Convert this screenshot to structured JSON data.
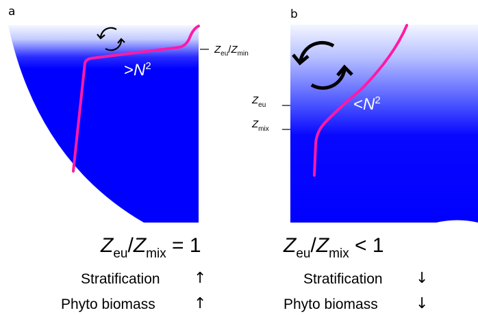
{
  "panel_a": {
    "label": "a",
    "n2_prefix": ">",
    "n2_var": "N",
    "n2_exp": "2",
    "depth_ratio": {
      "top": "Z",
      "top_sub": "eu",
      "sep": "/",
      "bottom": "Z",
      "bottom_sub": "min"
    },
    "ratio_eq": {
      "num": "Z",
      "num_sub": "eu",
      "sep": "/",
      "den": "Z",
      "den_sub": "mix",
      "rel": " = 1"
    },
    "trends": [
      {
        "label": "Stratification",
        "direction": "up",
        "glyph": "↑"
      },
      {
        "label": "Phyto biomass",
        "direction": "up",
        "glyph": "↑"
      }
    ]
  },
  "panel_b": {
    "label": "b",
    "n2_prefix": "<",
    "n2_var": "N",
    "n2_exp": "2",
    "depth_eu": {
      "var": "Z",
      "sub": "eu"
    },
    "depth_mix": {
      "var": "Z",
      "sub": "mix"
    },
    "ratio_eq": {
      "num": "Z",
      "num_sub": "eu",
      "sep": "/",
      "den": "Z",
      "den_sub": "mix",
      "rel": " < 1"
    },
    "trends": [
      {
        "label": "Stratification",
        "direction": "down",
        "glyph": "↓"
      },
      {
        "label": "Phyto biomass",
        "direction": "down",
        "glyph": "↓"
      }
    ]
  },
  "colors": {
    "water_surface": "#f4f6ff",
    "water_deep": "#0000ff",
    "profile_line": "#ff1aa8",
    "text": "#000000",
    "label_on_water": "#ffffff"
  }
}
